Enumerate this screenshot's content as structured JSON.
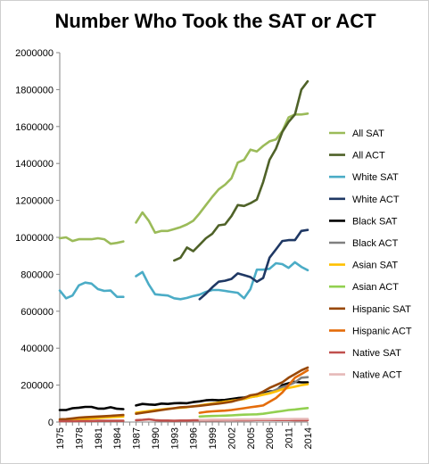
{
  "chart_data": {
    "type": "line",
    "title": "Number Who Took the SAT or ACT",
    "xlabel": "",
    "ylabel": "",
    "ylim": [
      0,
      2000000
    ],
    "yticks": [
      0,
      200000,
      400000,
      600000,
      800000,
      1000000,
      1200000,
      1400000,
      1600000,
      1800000,
      2000000
    ],
    "yticklabels": [
      "0",
      "200000",
      "400000",
      "600000",
      "800000",
      "1000000",
      "1200000",
      "1400000",
      "1600000",
      "1800000",
      "2000000"
    ],
    "xlim": [
      1975,
      2014
    ],
    "xticks": [
      1975,
      1978,
      1981,
      1984,
      1987,
      1990,
      1993,
      1996,
      1999,
      2002,
      2005,
      2008,
      2011,
      2014
    ],
    "xticklabels": [
      "1975",
      "1978",
      "1981",
      "1984",
      "1987",
      "1990",
      "1993",
      "1996",
      "1999",
      "2002",
      "2005",
      "2008",
      "2011",
      "2014"
    ],
    "grid": false,
    "legend_position": "right",
    "series": [
      {
        "name": "All SAT",
        "color": "#9bbb59",
        "segments": [
          {
            "x": [
              1975,
              1976,
              1977,
              1978,
              1979,
              1980,
              1981,
              1982,
              1983,
              1984,
              1985
            ],
            "y": [
              995000,
              1000000,
              980000,
              990000,
              990000,
              990000,
              995000,
              990000,
              965000,
              970000,
              978000
            ]
          },
          {
            "x": [
              1987,
              1988,
              1989,
              1990,
              1991,
              1992,
              1993,
              1994,
              1995,
              1996,
              1997,
              1998,
              1999,
              2000,
              2001,
              2002,
              2003,
              2004,
              2005,
              2006,
              2007,
              2008,
              2009,
              2010,
              2011,
              2012,
              2013,
              2014
            ],
            "y": [
              1080000,
              1135000,
              1090000,
              1025000,
              1035000,
              1035000,
              1045000,
              1055000,
              1070000,
              1090000,
              1130000,
              1175000,
              1220000,
              1260000,
              1285000,
              1320000,
              1405000,
              1420000,
              1475000,
              1465000,
              1495000,
              1520000,
              1530000,
              1575000,
              1650000,
              1665000,
              1665000,
              1670000
            ]
          }
        ]
      },
      {
        "name": "All ACT",
        "color": "#4f6228",
        "segments": [
          {
            "x": [
              1993,
              1994,
              1995,
              1996,
              1997,
              1998,
              1999,
              2000,
              2001,
              2002,
              2003,
              2004,
              2005,
              2006,
              2007,
              2008,
              2009,
              2010,
              2011,
              2012,
              2013,
              2014
            ],
            "y": [
              875000,
              890000,
              945000,
              925000,
              960000,
              995000,
              1020000,
              1065000,
              1070000,
              1115000,
              1175000,
              1170000,
              1185000,
              1205000,
              1300000,
              1420000,
              1480000,
              1570000,
              1625000,
              1665000,
              1800000,
              1845000
            ]
          }
        ]
      },
      {
        "name": "White SAT",
        "color": "#4bacc6",
        "segments": [
          {
            "x": [
              1975,
              1976,
              1977,
              1978,
              1979,
              1980,
              1981,
              1982,
              1983,
              1984,
              1985
            ],
            "y": [
              712000,
              670000,
              685000,
              740000,
              755000,
              750000,
              720000,
              710000,
              712000,
              678000,
              678000
            ]
          },
          {
            "x": [
              1987,
              1988,
              1989,
              1990,
              1991,
              1992,
              1993,
              1994,
              1995,
              1996,
              1997,
              1998,
              1999,
              2000,
              2001,
              2002,
              2003,
              2004,
              2005,
              2006,
              2007,
              2008,
              2009,
              2010,
              2011,
              2012,
              2013,
              2014
            ],
            "y": [
              790000,
              812000,
              745000,
              692000,
              688000,
              685000,
              670000,
              665000,
              672000,
              682000,
              690000,
              705000,
              715000,
              715000,
              710000,
              705000,
              700000,
              670000,
              720000,
              825000,
              825000,
              830000,
              860000,
              855000,
              835000,
              865000,
              840000,
              822000
            ]
          }
        ]
      },
      {
        "name": "White ACT",
        "color": "#1f3864",
        "segments": [
          {
            "x": [
              1997,
              1998,
              1999,
              2000,
              2001,
              2002,
              2003,
              2004,
              2005,
              2006,
              2007,
              2008,
              2009,
              2010,
              2011,
              2012,
              2013,
              2014
            ],
            "y": [
              665000,
              695000,
              730000,
              760000,
              765000,
              775000,
              805000,
              795000,
              785000,
              760000,
              780000,
              890000,
              935000,
              980000,
              985000,
              985000,
              1035000,
              1040000
            ]
          }
        ]
      },
      {
        "name": "Black SAT",
        "color": "#000000",
        "segments": [
          {
            "x": [
              1975,
              1976,
              1977,
              1978,
              1979,
              1980,
              1981,
              1982,
              1983,
              1984,
              1985
            ],
            "y": [
              65000,
              65000,
              75000,
              78000,
              82000,
              82000,
              73000,
              73000,
              80000,
              72000,
              70000
            ]
          },
          {
            "x": [
              1987,
              1988,
              1989,
              1990,
              1991,
              1992,
              1993,
              1994,
              1995,
              1996,
              1997,
              1998,
              1999,
              2000,
              2001,
              2002,
              2003,
              2004,
              2005,
              2006,
              2007,
              2008,
              2009,
              2010,
              2011,
              2012,
              2013,
              2014
            ],
            "y": [
              90000,
              98000,
              95000,
              93000,
              100000,
              98000,
              102000,
              103000,
              102000,
              108000,
              112000,
              118000,
              120000,
              118000,
              120000,
              125000,
              130000,
              133000,
              140000,
              150000,
              155000,
              165000,
              170000,
              200000,
              210000,
              218000,
              215000,
              215000
            ]
          }
        ]
      },
      {
        "name": "Black ACT",
        "color": "#808080",
        "segments": [
          {
            "x": [
              1997,
              1998,
              1999,
              2000,
              2001,
              2002,
              2003,
              2004,
              2005,
              2006,
              2007,
              2008,
              2009,
              2010,
              2011,
              2012,
              2013,
              2014
            ],
            "y": [
              90000,
              95000,
              100000,
              105000,
              110000,
              115000,
              120000,
              125000,
              135000,
              140000,
              150000,
              160000,
              175000,
              190000,
              200000,
              215000,
              240000,
              243000
            ]
          }
        ]
      },
      {
        "name": "Asian SAT",
        "color": "#ffc000",
        "segments": [
          {
            "x": [
              1975,
              1976,
              1977,
              1978,
              1979,
              1980,
              1981,
              1982,
              1983,
              1984,
              1985
            ],
            "y": [
              10000,
              12000,
              14000,
              16000,
              18000,
              20000,
              22000,
              24000,
              26000,
              28000,
              30000
            ]
          },
          {
            "x": [
              1987,
              1988,
              1989,
              1990,
              1991,
              1992,
              1993,
              1994,
              1995,
              1996,
              1997,
              1998,
              1999,
              2000,
              2001,
              2002,
              2003,
              2004,
              2005,
              2006,
              2007,
              2008,
              2009,
              2010,
              2011,
              2012,
              2013,
              2014
            ],
            "y": [
              50000,
              55000,
              60000,
              65000,
              68000,
              72000,
              75000,
              78000,
              80000,
              85000,
              90000,
              95000,
              100000,
              105000,
              110000,
              115000,
              120000,
              125000,
              135000,
              140000,
              148000,
              155000,
              165000,
              178000,
              185000,
              192000,
              200000,
              205000
            ]
          }
        ]
      },
      {
        "name": "Asian ACT",
        "color": "#92d050",
        "segments": [
          {
            "x": [
              1997,
              1998,
              1999,
              2000,
              2001,
              2002,
              2003,
              2004,
              2005,
              2006,
              2007,
              2008,
              2009,
              2010,
              2011,
              2012,
              2013,
              2014
            ],
            "y": [
              30000,
              32000,
              33000,
              34000,
              35000,
              36000,
              38000,
              40000,
              41000,
              42000,
              45000,
              50000,
              55000,
              60000,
              65000,
              68000,
              72000,
              76000
            ]
          }
        ]
      },
      {
        "name": "Hispanic SAT",
        "color": "#984807",
        "segments": [
          {
            "x": [
              1975,
              1976,
              1977,
              1978,
              1979,
              1980,
              1981,
              1982,
              1983,
              1984,
              1985
            ],
            "y": [
              15000,
              16000,
              20000,
              24000,
              26000,
              28000,
              30000,
              32000,
              34000,
              36000,
              38000
            ]
          },
          {
            "x": [
              1987,
              1988,
              1989,
              1990,
              1991,
              1992,
              1993,
              1994,
              1995,
              1996,
              1997,
              1998,
              1999,
              2000,
              2001,
              2002,
              2003,
              2004,
              2005,
              2006,
              2007,
              2008,
              2009,
              2010,
              2011,
              2012,
              2013,
              2014
            ],
            "y": [
              45000,
              50000,
              55000,
              60000,
              65000,
              70000,
              75000,
              80000,
              82000,
              85000,
              88000,
              92000,
              96000,
              100000,
              105000,
              110000,
              120000,
              130000,
              145000,
              150000,
              165000,
              185000,
              200000,
              215000,
              240000,
              260000,
              280000,
              295000
            ]
          }
        ]
      },
      {
        "name": "Hispanic ACT",
        "color": "#e46c0a",
        "segments": [
          {
            "x": [
              1997,
              1998,
              1999,
              2000,
              2001,
              2002,
              2003,
              2004,
              2005,
              2006,
              2007,
              2008,
              2009,
              2010,
              2011,
              2012,
              2013,
              2014
            ],
            "y": [
              50000,
              55000,
              58000,
              60000,
              62000,
              65000,
              70000,
              75000,
              80000,
              85000,
              90000,
              110000,
              130000,
              160000,
              200000,
              240000,
              260000,
              280000
            ]
          }
        ]
      },
      {
        "name": "Native SAT",
        "color": "#c0504d",
        "segments": [
          {
            "x": [
              1975,
              1976,
              1977,
              1978,
              1979,
              1980,
              1981,
              1982,
              1983,
              1984,
              1985
            ],
            "y": [
              5000,
              5000,
              5000,
              6000,
              6000,
              6000,
              7000,
              7000,
              7000,
              7000,
              7000
            ]
          },
          {
            "x": [
              1987,
              1988,
              1989,
              1990,
              1991,
              1992,
              1993,
              1994,
              1995,
              1996,
              1997,
              1998,
              1999,
              2000,
              2001,
              2002,
              2003,
              2004,
              2005,
              2006,
              2007,
              2008,
              2009,
              2010,
              2011,
              2012,
              2013,
              2014
            ],
            "y": [
              10000,
              12000,
              15000,
              10000,
              8000,
              8000,
              7000,
              8000,
              8000,
              9000,
              9000,
              9000,
              9000,
              9000,
              10000,
              10000,
              10000,
              10000,
              10000,
              11000,
              11000,
              11000,
              11000,
              11000,
              11000,
              10000,
              10000,
              10000
            ]
          }
        ]
      },
      {
        "name": "Native ACT",
        "color": "#e6b9b8",
        "segments": [
          {
            "x": [
              1997,
              1998,
              1999,
              2000,
              2001,
              2002,
              2003,
              2004,
              2005,
              2006,
              2007,
              2008,
              2009,
              2010,
              2011,
              2012,
              2013,
              2014
            ],
            "y": [
              12000,
              12000,
              13000,
              13000,
              13000,
              13000,
              14000,
              14000,
              14000,
              15000,
              15000,
              15000,
              16000,
              16000,
              16000,
              17000,
              17000,
              17000
            ]
          }
        ]
      }
    ]
  }
}
